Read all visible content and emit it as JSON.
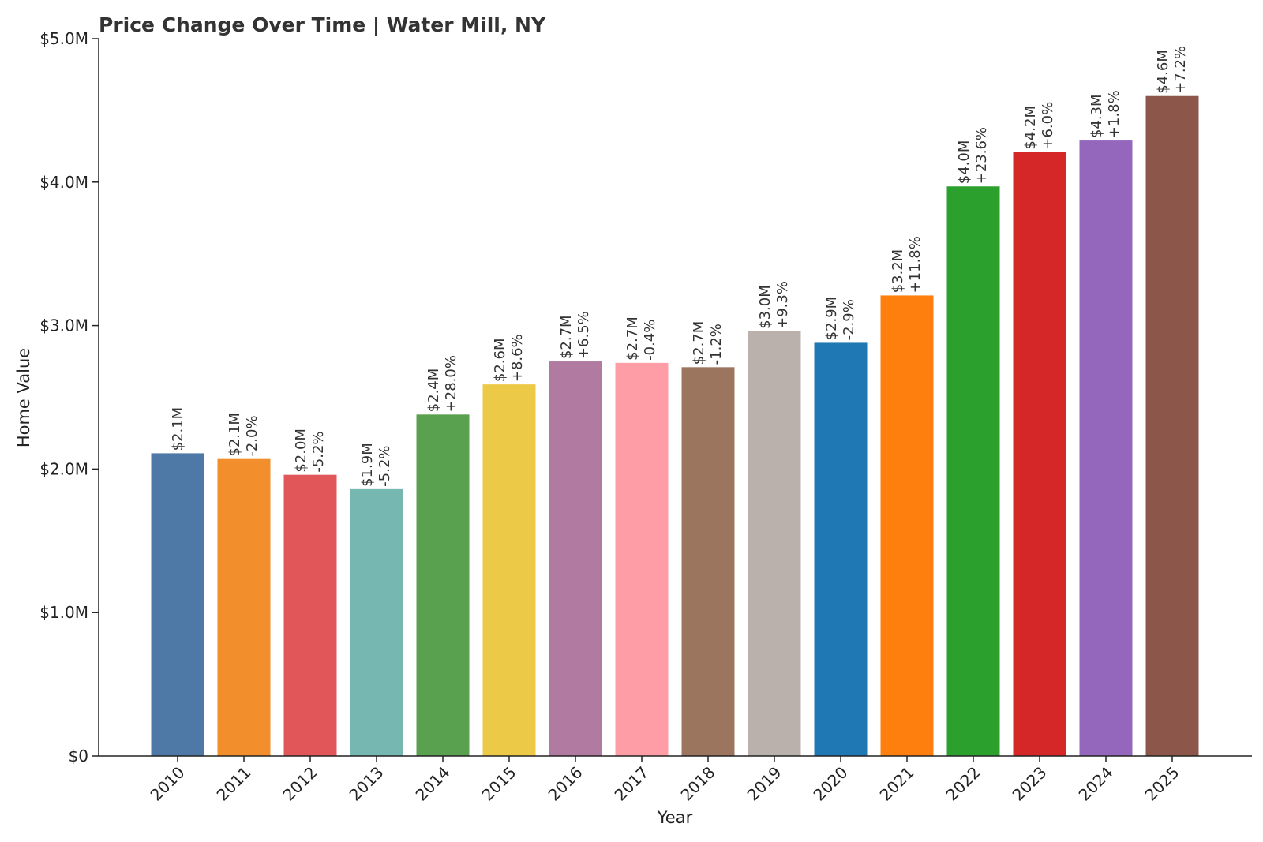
{
  "chart_data": {
    "type": "bar",
    "title": "Price Change Over Time | Water Mill, NY",
    "xlabel": "Year",
    "ylabel": "Home Value",
    "ylim": [
      0,
      5000000
    ],
    "yticks": [
      0,
      1000000,
      2000000,
      3000000,
      4000000,
      5000000
    ],
    "ytick_labels": [
      "$0",
      "$1.0M",
      "$2.0M",
      "$3.0M",
      "$4.0M",
      "$5.0M"
    ],
    "grid": false,
    "categories": [
      "2010",
      "2011",
      "2012",
      "2013",
      "2014",
      "2015",
      "2016",
      "2017",
      "2018",
      "2019",
      "2020",
      "2021",
      "2022",
      "2023",
      "2024",
      "2025"
    ],
    "values": [
      2110000,
      2070000,
      1960000,
      1860000,
      2380000,
      2590000,
      2750000,
      2740000,
      2710000,
      2960000,
      2880000,
      3210000,
      3970000,
      4210000,
      4290000,
      4600000
    ],
    "value_labels": [
      "$2.1M",
      "$2.1M",
      "$2.0M",
      "$1.9M",
      "$2.4M",
      "$2.6M",
      "$2.7M",
      "$2.7M",
      "$2.7M",
      "$3.0M",
      "$2.9M",
      "$3.2M",
      "$4.0M",
      "$4.2M",
      "$4.3M",
      "$4.6M"
    ],
    "change_labels": [
      "",
      "-2.0%",
      "-5.2%",
      "-5.2%",
      "+28.0%",
      "+8.6%",
      "+6.5%",
      "-0.4%",
      "-1.2%",
      "+9.3%",
      "-2.9%",
      "+11.8%",
      "+23.6%",
      "+6.0%",
      "+1.8%",
      "+7.2%"
    ],
    "colors": [
      "#4e79a7",
      "#f28e2b",
      "#e15759",
      "#76b7b2",
      "#59a14f",
      "#edc948",
      "#b07aa1",
      "#ff9da7",
      "#9c755f",
      "#bab0ac",
      "#1f77b4",
      "#ff7f0e",
      "#2ca02c",
      "#d62728",
      "#9467bd",
      "#8c564b"
    ]
  }
}
